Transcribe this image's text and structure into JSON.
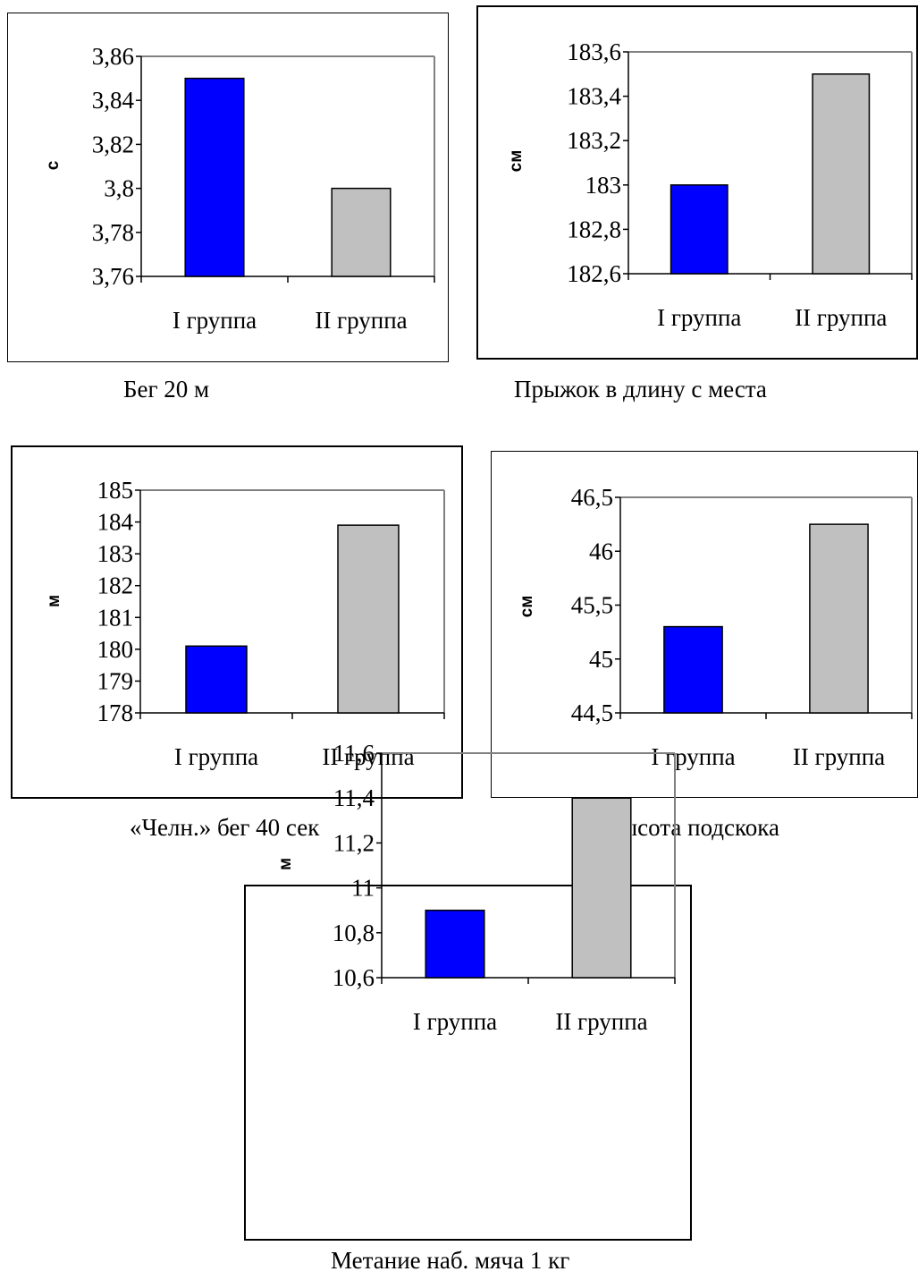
{
  "chart_data": [
    {
      "type": "bar",
      "title": "Бег 20 м",
      "ylabel": "с",
      "categories": [
        "I группа",
        "II группа"
      ],
      "values": [
        3.85,
        3.8
      ],
      "ylim": [
        3.76,
        3.86
      ],
      "yticks": [
        3.76,
        3.78,
        3.8,
        3.82,
        3.84,
        3.86
      ],
      "ytick_labels": [
        "3,76",
        "3,78",
        "3,8",
        "3,82",
        "3,84",
        "3,86"
      ],
      "bar_colors": [
        "#0000FF",
        "#C0C0C0"
      ],
      "grid": false,
      "legend": "none"
    },
    {
      "type": "bar",
      "title": "Прыжок в длину с места",
      "ylabel": "см",
      "categories": [
        "I группа",
        "II группа"
      ],
      "values": [
        183.0,
        183.5
      ],
      "ylim": [
        182.6,
        183.6
      ],
      "yticks": [
        182.6,
        182.8,
        183.0,
        183.2,
        183.4,
        183.6
      ],
      "ytick_labels": [
        "182,6",
        "182,8",
        "183",
        "183,2",
        "183,4",
        "183,6"
      ],
      "bar_colors": [
        "#0000FF",
        "#C0C0C0"
      ],
      "grid": false,
      "legend": "none"
    },
    {
      "type": "bar",
      "title": "«Челн.» бег 40 сек",
      "ylabel": "м",
      "categories": [
        "I группа",
        "II группа"
      ],
      "values": [
        180.1,
        183.9
      ],
      "ylim": [
        178,
        185
      ],
      "yticks": [
        178,
        179,
        180,
        181,
        182,
        183,
        184,
        185
      ],
      "ytick_labels": [
        "178",
        "179",
        "180",
        "181",
        "182",
        "183",
        "184",
        "185"
      ],
      "bar_colors": [
        "#0000FF",
        "#C0C0C0"
      ],
      "grid": false,
      "legend": "none"
    },
    {
      "type": "bar",
      "title": "Высота подскока",
      "ylabel": "см",
      "categories": [
        "I группа",
        "II группа"
      ],
      "values": [
        45.3,
        46.25
      ],
      "ylim": [
        44.5,
        46.5
      ],
      "yticks": [
        44.5,
        45.0,
        45.5,
        46.0,
        46.5
      ],
      "ytick_labels": [
        "44,5",
        "45",
        "45,5",
        "46",
        "46,5"
      ],
      "bar_colors": [
        "#0000FF",
        "#C0C0C0"
      ],
      "grid": false,
      "legend": "none"
    },
    {
      "type": "bar",
      "title": "Метание наб. мяча 1 кг",
      "ylabel": "м",
      "categories": [
        "I группа",
        "II группа"
      ],
      "values": [
        10.9,
        11.4
      ],
      "ylim": [
        10.6,
        11.6
      ],
      "yticks": [
        10.6,
        10.8,
        11.0,
        11.2,
        11.4,
        11.6
      ],
      "ytick_labels": [
        "10,6",
        "10,8",
        "11",
        "11,2",
        "11,4",
        "11,6"
      ],
      "bar_colors": [
        "#0000FF",
        "#C0C0C0"
      ],
      "grid": false,
      "legend": "none"
    }
  ]
}
